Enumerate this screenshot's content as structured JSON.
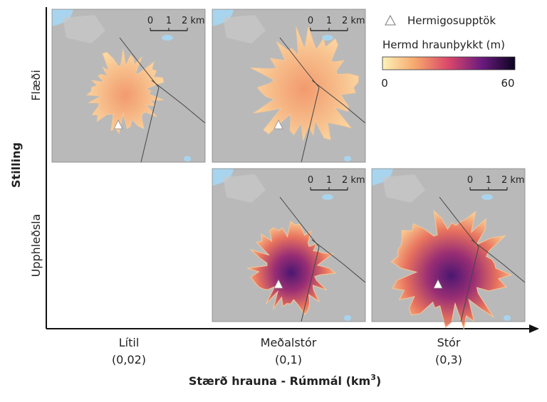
{
  "y_axis": {
    "title": "Stilling",
    "rows": [
      "Flæði",
      "Upphleðsla"
    ]
  },
  "x_axis": {
    "title": "Stærð hrauna - Rúmmál (km",
    "superscript": "3",
    "title_end": ")",
    "columns": [
      {
        "name": "Lítil",
        "volume": "(0,02)"
      },
      {
        "name": "Meðalstór",
        "volume": "(0,1)"
      },
      {
        "name": "Stór",
        "volume": "(0,3)"
      }
    ]
  },
  "scale_bar": [
    "0",
    "1",
    "2 km"
  ],
  "legend": {
    "vent": "Hermigosupptök",
    "colorbar_title": "Hermd hraunþykkt (m)",
    "min": "0",
    "max": "60"
  }
}
